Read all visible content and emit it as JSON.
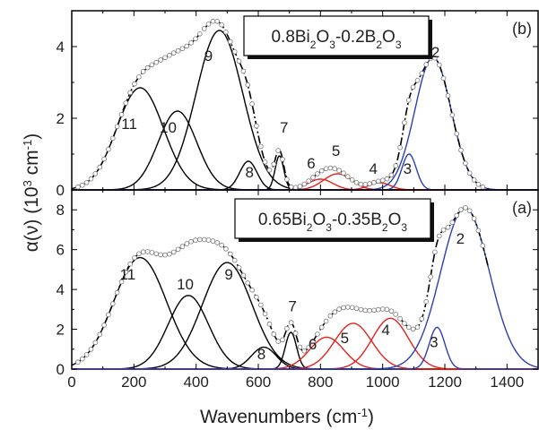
{
  "chart_data": [
    {
      "panel": "b",
      "type": "line",
      "panel_label": "(b)",
      "composition": {
        "a": "0.8Bi",
        "a_sub": "2",
        "b": "O",
        "b_sub": "3",
        "c": "-0.2B",
        "c_sub": "2",
        "d": "O",
        "d_sub": "3"
      },
      "xlim": [
        0,
        1500
      ],
      "ylim": [
        0,
        5.0
      ],
      "yticks": [
        0,
        2,
        4
      ],
      "series": [
        {
          "id": "11",
          "color": "#000000",
          "center": 220,
          "height": 2.85,
          "sigma": 75
        },
        {
          "id": "10",
          "color": "#000000",
          "center": 340,
          "height": 2.2,
          "sigma": 62
        },
        {
          "id": "9",
          "color": "#000000",
          "center": 475,
          "height": 4.45,
          "sigma": 75
        },
        {
          "id": "8",
          "color": "#000000",
          "center": 568,
          "height": 0.8,
          "sigma": 28
        },
        {
          "id": "7",
          "color": "#000000",
          "center": 668,
          "height": 0.95,
          "sigma": 14
        },
        {
          "id": "6",
          "color": "#e8201b",
          "center": 800,
          "height": 0.3,
          "sigma": 40
        },
        {
          "id": "5",
          "color": "#e8201b",
          "center": 855,
          "height": 0.45,
          "sigma": 45
        },
        {
          "id": "4",
          "color": "#e8201b",
          "center": 990,
          "height": 0.2,
          "sigma": 35
        },
        {
          "id": "3",
          "color": "#2b3fb5",
          "center": 1085,
          "height": 1.0,
          "sigma": 23
        },
        {
          "id": "2",
          "color": "#2b3fb5",
          "center": 1162,
          "height": 3.7,
          "sigma": 58
        }
      ],
      "peak_labels": [
        {
          "text": "11",
          "x": 185,
          "y": 1.7
        },
        {
          "text": "10",
          "x": 310,
          "y": 1.6
        },
        {
          "text": "9",
          "x": 440,
          "y": 3.6
        },
        {
          "text": "8",
          "x": 572,
          "y": 0.35
        },
        {
          "text": "7",
          "x": 683,
          "y": 1.6
        },
        {
          "text": "6",
          "x": 770,
          "y": 0.6
        },
        {
          "text": "5",
          "x": 850,
          "y": 0.95
        },
        {
          "text": "4",
          "x": 970,
          "y": 0.45
        },
        {
          "text": "3",
          "x": 1080,
          "y": 0.45
        },
        {
          "text": "2",
          "x": 1170,
          "y": 3.7
        }
      ]
    },
    {
      "panel": "a",
      "type": "line",
      "panel_label": "(a)",
      "composition": {
        "a": "0.65Bi",
        "a_sub": "2",
        "b": "O",
        "b_sub": "3",
        "c": "-0.35B",
        "c_sub": "2",
        "d": "O",
        "d_sub": "3"
      },
      "xlim": [
        0,
        1500
      ],
      "ylim": [
        0,
        9.0
      ],
      "yticks": [
        0,
        2,
        4,
        6,
        8
      ],
      "series": [
        {
          "id": "11",
          "color": "#000000",
          "center": 220,
          "height": 5.6,
          "sigma": 85
        },
        {
          "id": "10",
          "color": "#000000",
          "center": 375,
          "height": 3.7,
          "sigma": 65
        },
        {
          "id": "9",
          "color": "#000000",
          "center": 500,
          "height": 5.35,
          "sigma": 80
        },
        {
          "id": "8",
          "color": "#000000",
          "center": 618,
          "height": 1.1,
          "sigma": 40
        },
        {
          "id": "7",
          "color": "#000000",
          "center": 705,
          "height": 1.85,
          "sigma": 18
        },
        {
          "id": "6",
          "color": "#e8201b",
          "center": 820,
          "height": 1.6,
          "sigma": 55
        },
        {
          "id": "5",
          "color": "#e8201b",
          "center": 905,
          "height": 2.3,
          "sigma": 60
        },
        {
          "id": "4",
          "color": "#e8201b",
          "center": 1025,
          "height": 2.55,
          "sigma": 58
        },
        {
          "id": "3",
          "color": "#2b3fb5",
          "center": 1175,
          "height": 2.1,
          "sigma": 25
        },
        {
          "id": "2",
          "color": "#2b3fb5",
          "center": 1265,
          "height": 8.1,
          "sigma": 78
        }
      ],
      "peak_labels": [
        {
          "text": "11",
          "x": 180,
          "y": 4.5
        },
        {
          "text": "10",
          "x": 365,
          "y": 4.0
        },
        {
          "text": "9",
          "x": 505,
          "y": 4.5
        },
        {
          "text": "8",
          "x": 610,
          "y": 0.5
        },
        {
          "text": "7",
          "x": 710,
          "y": 2.9
        },
        {
          "text": "6",
          "x": 775,
          "y": 1.0
        },
        {
          "text": "5",
          "x": 878,
          "y": 1.3
        },
        {
          "text": "4",
          "x": 1010,
          "y": 1.7
        },
        {
          "text": "3",
          "x": 1165,
          "y": 1.1
        },
        {
          "text": "2",
          "x": 1250,
          "y": 6.3
        }
      ]
    }
  ],
  "xticks": [
    0,
    200,
    400,
    600,
    800,
    1000,
    1200,
    1400
  ],
  "xlabel": {
    "main": "Wavenumbers (cm",
    "sup": "-1",
    "close": ")"
  },
  "ylabel": {
    "main": "α(ν) (10",
    "sup1": "3",
    "mid": " cm",
    "sup2": "-1",
    "close": ")"
  }
}
